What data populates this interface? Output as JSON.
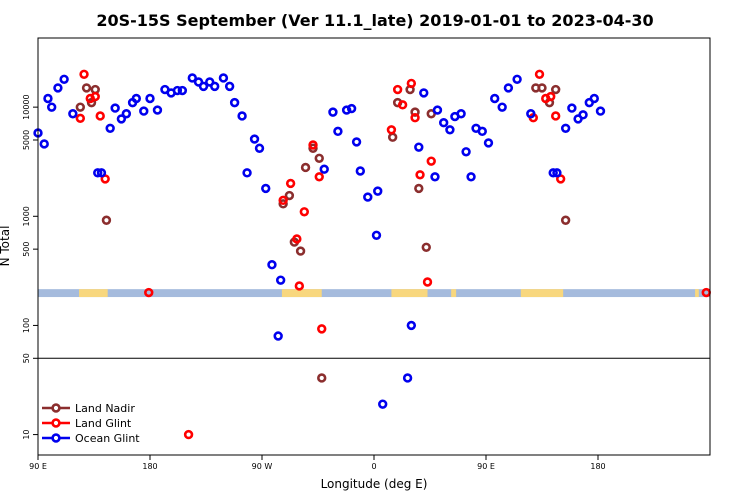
{
  "chart_data": {
    "type": "scatter",
    "title": "20S-15S September (Ver 11.1_late)   2019-01-01 to 2023-04-30",
    "xlabel": "Longitude (deg E)",
    "ylabel": "N Total",
    "y_scale": "log",
    "ylim": [
      6.5,
      43000
    ],
    "xlim": [
      90,
      630
    ],
    "x_ticks": [
      {
        "value": 90,
        "label": "90 E"
      },
      {
        "value": 180,
        "label": "180"
      },
      {
        "value": 270,
        "label": "90 W"
      },
      {
        "value": 360,
        "label": "0"
      },
      {
        "value": 450,
        "label": "90 E"
      },
      {
        "value": 540,
        "label": "180"
      }
    ],
    "y_ticks": [
      {
        "value": 10,
        "label": "10"
      },
      {
        "value": 50,
        "label": "50"
      },
      {
        "value": 100,
        "label": "100"
      },
      {
        "value": 500,
        "label": "500"
      },
      {
        "value": 1000,
        "label": "1000"
      },
      {
        "value": 5000,
        "label": "5000"
      },
      {
        "value": 10000,
        "label": "10000"
      }
    ],
    "reference_line_y": 50,
    "grid": false,
    "legend_position": "bottom-left",
    "colors": {
      "land_nadir": "#8b2e2e",
      "land_glint": "#ff0000",
      "ocean_glint": "#0000ee",
      "ocean_band": "#a5bbdd",
      "land_band": "#f8d77e"
    },
    "map_band": {
      "y_low": 182,
      "y_high": 215,
      "land_ranges": [
        [
          123,
          146
        ],
        [
          286,
          318
        ],
        [
          374,
          403
        ],
        [
          422,
          426
        ],
        [
          478,
          512
        ],
        [
          618,
          621
        ]
      ]
    },
    "series": [
      {
        "name": "Land Nadir",
        "color": "#8b2e2e",
        "points": [
          {
            "x": 124,
            "y": 10000
          },
          {
            "x": 129,
            "y": 15000
          },
          {
            "x": 133,
            "y": 11000
          },
          {
            "x": 136,
            "y": 14500
          },
          {
            "x": 145,
            "y": 920
          },
          {
            "x": 287,
            "y": 1300
          },
          {
            "x": 292,
            "y": 1550
          },
          {
            "x": 296,
            "y": 580
          },
          {
            "x": 301,
            "y": 480
          },
          {
            "x": 305,
            "y": 2800
          },
          {
            "x": 311,
            "y": 4200
          },
          {
            "x": 316,
            "y": 3400
          },
          {
            "x": 318,
            "y": 33
          },
          {
            "x": 375,
            "y": 5300
          },
          {
            "x": 379,
            "y": 11000
          },
          {
            "x": 389,
            "y": 14500
          },
          {
            "x": 393,
            "y": 9000
          },
          {
            "x": 396,
            "y": 1800
          },
          {
            "x": 402,
            "y": 520
          },
          {
            "x": 406,
            "y": 8700
          },
          {
            "x": 490,
            "y": 15000
          },
          {
            "x": 495,
            "y": 15000
          },
          {
            "x": 501,
            "y": 11000
          },
          {
            "x": 506,
            "y": 14500
          },
          {
            "x": 514,
            "y": 920
          }
        ]
      },
      {
        "name": "Land Glint",
        "color": "#ff0000",
        "points": [
          {
            "x": 124,
            "y": 7900
          },
          {
            "x": 127,
            "y": 20000
          },
          {
            "x": 132,
            "y": 12000
          },
          {
            "x": 136,
            "y": 12500
          },
          {
            "x": 140,
            "y": 8300
          },
          {
            "x": 144,
            "y": 2200
          },
          {
            "x": 179,
            "y": 200
          },
          {
            "x": 211,
            "y": 10
          },
          {
            "x": 287,
            "y": 1400
          },
          {
            "x": 293,
            "y": 2000
          },
          {
            "x": 298,
            "y": 620
          },
          {
            "x": 300,
            "y": 230
          },
          {
            "x": 304,
            "y": 1100
          },
          {
            "x": 311,
            "y": 4500
          },
          {
            "x": 316,
            "y": 2300
          },
          {
            "x": 318,
            "y": 93
          },
          {
            "x": 374,
            "y": 6200
          },
          {
            "x": 379,
            "y": 14500
          },
          {
            "x": 383,
            "y": 10500
          },
          {
            "x": 390,
            "y": 16500
          },
          {
            "x": 393,
            "y": 8000
          },
          {
            "x": 397,
            "y": 2400
          },
          {
            "x": 403,
            "y": 250
          },
          {
            "x": 406,
            "y": 3200
          },
          {
            "x": 488,
            "y": 8000
          },
          {
            "x": 493,
            "y": 20000
          },
          {
            "x": 498,
            "y": 12000
          },
          {
            "x": 502,
            "y": 12500
          },
          {
            "x": 506,
            "y": 8300
          },
          {
            "x": 510,
            "y": 2200
          },
          {
            "x": 627,
            "y": 200
          }
        ]
      },
      {
        "name": "Ocean Glint",
        "color": "#0000ee",
        "points": [
          {
            "x": 90,
            "y": 5800
          },
          {
            "x": 95,
            "y": 4600
          },
          {
            "x": 98,
            "y": 12000
          },
          {
            "x": 101,
            "y": 10000
          },
          {
            "x": 106,
            "y": 15000
          },
          {
            "x": 111,
            "y": 18000
          },
          {
            "x": 118,
            "y": 8700
          },
          {
            "x": 138,
            "y": 2500
          },
          {
            "x": 141,
            "y": 2500
          },
          {
            "x": 148,
            "y": 6400
          },
          {
            "x": 152,
            "y": 9800
          },
          {
            "x": 157,
            "y": 7800
          },
          {
            "x": 161,
            "y": 8700
          },
          {
            "x": 166,
            "y": 11000
          },
          {
            "x": 169,
            "y": 12000
          },
          {
            "x": 175,
            "y": 9200
          },
          {
            "x": 180,
            "y": 12000
          },
          {
            "x": 186,
            "y": 9400
          },
          {
            "x": 192,
            "y": 14500
          },
          {
            "x": 197,
            "y": 13500
          },
          {
            "x": 202,
            "y": 14200
          },
          {
            "x": 206,
            "y": 14200
          },
          {
            "x": 214,
            "y": 18500
          },
          {
            "x": 219,
            "y": 17000
          },
          {
            "x": 223,
            "y": 15500
          },
          {
            "x": 228,
            "y": 17000
          },
          {
            "x": 232,
            "y": 15500
          },
          {
            "x": 239,
            "y": 18500
          },
          {
            "x": 244,
            "y": 15500
          },
          {
            "x": 248,
            "y": 11000
          },
          {
            "x": 254,
            "y": 8300
          },
          {
            "x": 258,
            "y": 2500
          },
          {
            "x": 264,
            "y": 5100
          },
          {
            "x": 268,
            "y": 4200
          },
          {
            "x": 273,
            "y": 1800
          },
          {
            "x": 278,
            "y": 360
          },
          {
            "x": 283,
            "y": 80
          },
          {
            "x": 285,
            "y": 260
          },
          {
            "x": 320,
            "y": 2700
          },
          {
            "x": 327,
            "y": 9000
          },
          {
            "x": 331,
            "y": 6000
          },
          {
            "x": 338,
            "y": 9400
          },
          {
            "x": 342,
            "y": 9700
          },
          {
            "x": 346,
            "y": 4800
          },
          {
            "x": 349,
            "y": 2600
          },
          {
            "x": 355,
            "y": 1500
          },
          {
            "x": 362,
            "y": 670
          },
          {
            "x": 363,
            "y": 1700
          },
          {
            "x": 367,
            "y": 19
          },
          {
            "x": 387,
            "y": 33
          },
          {
            "x": 390,
            "y": 100
          },
          {
            "x": 396,
            "y": 4300
          },
          {
            "x": 400,
            "y": 13500
          },
          {
            "x": 409,
            "y": 2300
          },
          {
            "x": 411,
            "y": 9400
          },
          {
            "x": 416,
            "y": 7200
          },
          {
            "x": 421,
            "y": 6200
          },
          {
            "x": 425,
            "y": 8200
          },
          {
            "x": 430,
            "y": 8700
          },
          {
            "x": 434,
            "y": 3900
          },
          {
            "x": 438,
            "y": 2300
          },
          {
            "x": 442,
            "y": 6400
          },
          {
            "x": 447,
            "y": 6000
          },
          {
            "x": 452,
            "y": 4700
          },
          {
            "x": 457,
            "y": 12000
          },
          {
            "x": 463,
            "y": 10000
          },
          {
            "x": 468,
            "y": 15000
          },
          {
            "x": 475,
            "y": 18000
          },
          {
            "x": 486,
            "y": 8700
          },
          {
            "x": 504,
            "y": 2500
          },
          {
            "x": 507,
            "y": 2500
          },
          {
            "x": 514,
            "y": 6400
          },
          {
            "x": 519,
            "y": 9800
          },
          {
            "x": 524,
            "y": 7800
          },
          {
            "x": 528,
            "y": 8500
          },
          {
            "x": 533,
            "y": 11000
          },
          {
            "x": 537,
            "y": 12000
          },
          {
            "x": 542,
            "y": 9200
          }
        ]
      }
    ]
  }
}
